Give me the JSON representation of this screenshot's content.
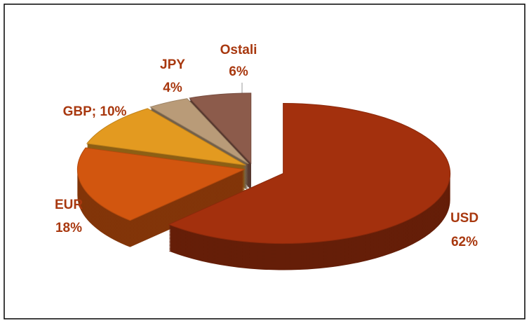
{
  "chart_data": {
    "type": "pie",
    "categories": [
      "USD",
      "EUR",
      "GBP",
      "JPY",
      "Ostali"
    ],
    "values": [
      62,
      18,
      10,
      4,
      6
    ],
    "value_labels": [
      "62%",
      "18%",
      "; 10%",
      "4%",
      "6%"
    ],
    "colors": [
      "#a3300d",
      "#d2560f",
      "#e39a20",
      "#b99b78",
      "#8c5b4b"
    ]
  }
}
